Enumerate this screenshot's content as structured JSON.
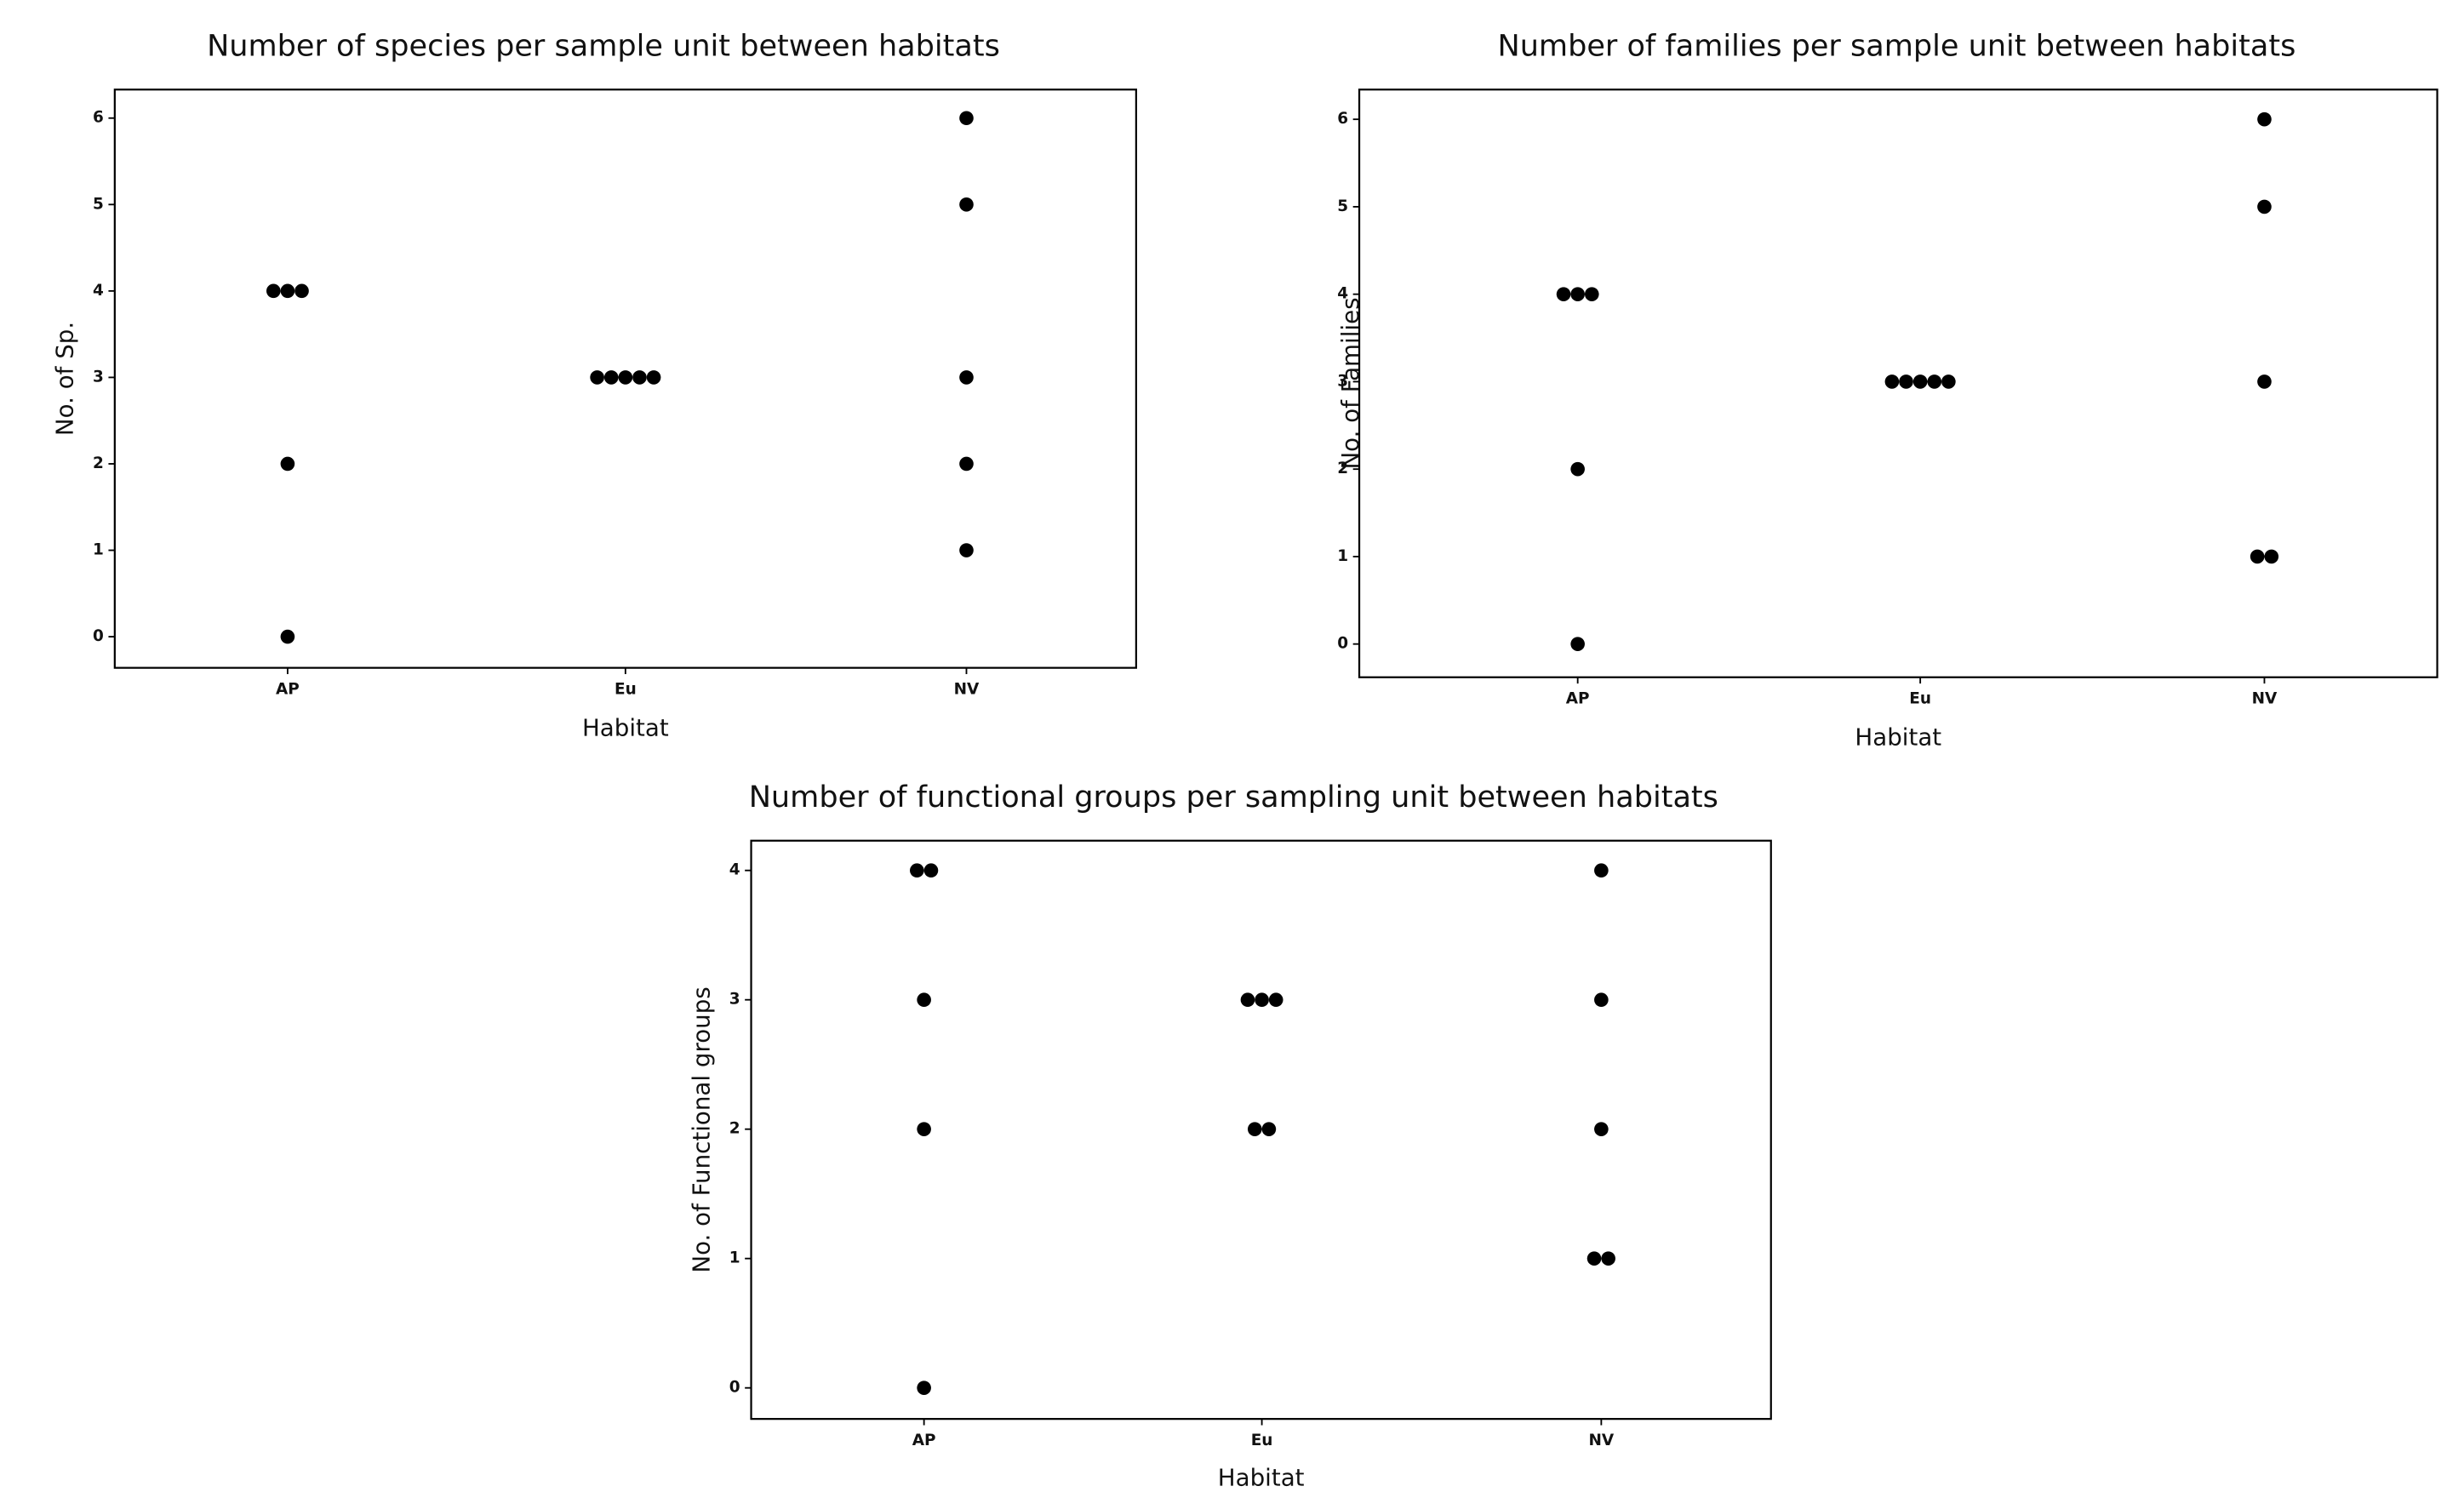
{
  "chart_data": [
    {
      "type": "dot",
      "title": "Number of species per sample unit between habitats",
      "x_label": "Habitat",
      "y_label": "No. of Sp.",
      "categories": [
        "AP",
        "Eu",
        "NV"
      ],
      "values": [
        [
          4,
          4,
          4,
          2,
          0
        ],
        [
          3,
          3,
          3,
          3,
          3
        ],
        [
          6,
          5,
          3,
          2,
          1
        ]
      ],
      "color": "#000000",
      "ylim": [
        -0.36,
        6.33
      ],
      "yticks": [
        0,
        1,
        2,
        3,
        4,
        5,
        6
      ]
    },
    {
      "type": "dot",
      "title": "Number of families per sample unit between habitats",
      "x_label": "Habitat",
      "y_label": "No. of Families",
      "categories": [
        "AP",
        "Eu",
        "NV"
      ],
      "values": [
        [
          4,
          4,
          4,
          2,
          0
        ],
        [
          3,
          3,
          3,
          3,
          3
        ],
        [
          6,
          5,
          3,
          1,
          1
        ]
      ],
      "color": "#000000",
      "ylim": [
        -0.38,
        6.34
      ],
      "yticks": [
        0,
        1,
        2,
        3,
        4,
        5,
        6
      ]
    },
    {
      "type": "dot",
      "title": "Number of functional groups per sampling unit between habitats",
      "x_label": "Habitat",
      "y_label": "No. of Functional groups",
      "categories": [
        "AP",
        "Eu",
        "NV"
      ],
      "values": [
        [
          4,
          4,
          3,
          2,
          0
        ],
        [
          3,
          3,
          3,
          2,
          2
        ],
        [
          4,
          3,
          2,
          1,
          1
        ]
      ],
      "color": "#000000",
      "ylim": [
        -0.24,
        4.23
      ],
      "yticks": [
        0,
        1,
        2,
        3,
        4
      ]
    }
  ]
}
